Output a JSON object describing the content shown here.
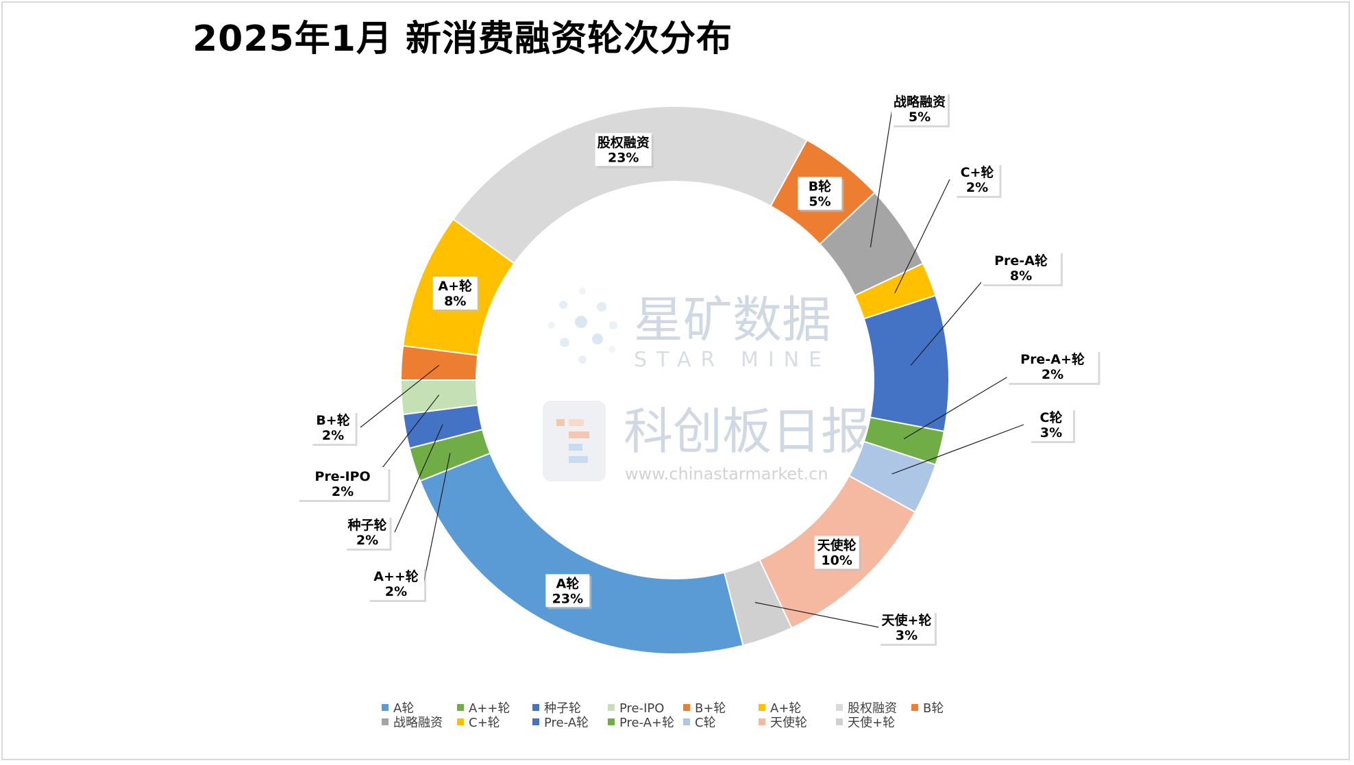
{
  "title": "2025年1月 新消费融资轮次分布",
  "watermark": {
    "brand_cn": "星矿数据",
    "brand_en": "STAR MINE",
    "paper_cn": "科创板日报",
    "url": "www.chinastarmarket.cn"
  },
  "chart_data": {
    "type": "pie",
    "donut": true,
    "title": "2025年1月 新消费融资轮次分布",
    "legend_position": "bottom",
    "slices": [
      {
        "name": "A轮",
        "value": 23,
        "label": "23%",
        "color": "#5b9bd5"
      },
      {
        "name": "A++轮",
        "value": 2,
        "label": "2%",
        "color": "#70ad47"
      },
      {
        "name": "种子轮",
        "value": 2,
        "label": "2%",
        "color": "#4472c4"
      },
      {
        "name": "Pre-IPO",
        "value": 2,
        "label": "2%",
        "color": "#c5e0b4"
      },
      {
        "name": "B+轮",
        "value": 2,
        "label": "2%",
        "color": "#ed7d31"
      },
      {
        "name": "A+轮",
        "value": 8,
        "label": "8%",
        "color": "#ffc000"
      },
      {
        "name": "股权融资",
        "value": 23,
        "label": "23%",
        "color": "#d9d9d9"
      },
      {
        "name": "B轮",
        "value": 5,
        "label": "5%",
        "color": "#ed7d31"
      },
      {
        "name": "战略融资",
        "value": 5,
        "label": "5%",
        "color": "#a5a5a5"
      },
      {
        "name": "C+轮",
        "value": 2,
        "label": "2%",
        "color": "#ffc000"
      },
      {
        "name": "Pre-A轮",
        "value": 8,
        "label": "8%",
        "color": "#4472c4"
      },
      {
        "name": "Pre-A+轮",
        "value": 2,
        "label": "2%",
        "color": "#70ad47"
      },
      {
        "name": "C轮",
        "value": 3,
        "label": "3%",
        "color": "#adc6e5"
      },
      {
        "name": "天使轮",
        "value": 10,
        "label": "10%",
        "color": "#f4b9a0"
      },
      {
        "name": "天使+轮",
        "value": 3,
        "label": "3%",
        "color": "#d0d0d0"
      }
    ]
  }
}
